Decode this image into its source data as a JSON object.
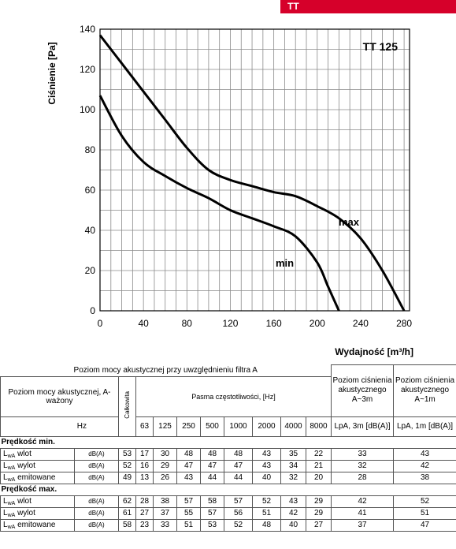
{
  "header": {
    "tag": "TT"
  },
  "chart_data": {
    "type": "line",
    "title": "TT 125",
    "xlabel": "Wydajność [m³/h]",
    "ylabel": "Ciśnienie [Pa]",
    "xlim": [
      0,
      285
    ],
    "ylim": [
      0,
      140
    ],
    "xticks": [
      0,
      40,
      80,
      120,
      160,
      200,
      240,
      280
    ],
    "yticks": [
      0,
      20,
      40,
      60,
      80,
      100,
      120,
      140
    ],
    "grid": true,
    "series": [
      {
        "name": "max",
        "x": [
          0,
          20,
          40,
          60,
          80,
          100,
          120,
          140,
          160,
          180,
          200,
          220,
          240,
          260,
          280
        ],
        "y": [
          137,
          123,
          109,
          95,
          81,
          70,
          65,
          62,
          59,
          57,
          52,
          46,
          36,
          20,
          0
        ]
      },
      {
        "name": "min",
        "x": [
          0,
          20,
          40,
          60,
          80,
          100,
          120,
          140,
          160,
          180,
          200,
          210,
          220
        ],
        "y": [
          107,
          87,
          74,
          67,
          61,
          56,
          50,
          46,
          42,
          37,
          24,
          12,
          0
        ]
      }
    ]
  },
  "table": {
    "caption": "Poziom mocy akustycznej przy uwzględnieniu filtra A",
    "rowhead": "Poziom mocy akustycznej, A-ważony",
    "unit_hz": "Hz",
    "total": "Całkowita",
    "bands_label": "Pasma częstotliwości, [Hz]",
    "bands": [
      "63",
      "125",
      "250",
      "500",
      "1000",
      "2000",
      "4000",
      "8000"
    ],
    "lpa3_head": "Poziom ciśnienia akustycznego A~3m",
    "lpa1_head": "Poziom ciśnienia akustycznego A~1m",
    "lpa3_unit": "LpA, 3m [dB(A)]",
    "lpa1_unit": "LpA, 1m [dB(A)]",
    "sections": [
      {
        "title": "Prędkość min.",
        "rows": [
          {
            "label": "wlot",
            "unit": "dB(A)",
            "total": "53",
            "bands": [
              "17",
              "30",
              "48",
              "48",
              "48",
              "43",
              "35",
              "22"
            ],
            "lpa3": "33",
            "lpa1": "43"
          },
          {
            "label": "wylot",
            "unit": "dB(A)",
            "total": "52",
            "bands": [
              "16",
              "29",
              "47",
              "47",
              "47",
              "43",
              "34",
              "21"
            ],
            "lpa3": "32",
            "lpa1": "42"
          },
          {
            "label": "emitowane",
            "unit": "dB(A)",
            "total": "49",
            "bands": [
              "13",
              "26",
              "43",
              "44",
              "44",
              "40",
              "32",
              "20"
            ],
            "lpa3": "28",
            "lpa1": "38"
          }
        ]
      },
      {
        "title": "Prędkość max.",
        "rows": [
          {
            "label": "wlot",
            "unit": "dB(A)",
            "total": "62",
            "bands": [
              "28",
              "38",
              "57",
              "58",
              "57",
              "52",
              "43",
              "29"
            ],
            "lpa3": "42",
            "lpa1": "52"
          },
          {
            "label": "wylot",
            "unit": "dB(A)",
            "total": "61",
            "bands": [
              "27",
              "37",
              "55",
              "57",
              "56",
              "51",
              "42",
              "29"
            ],
            "lpa3": "41",
            "lpa1": "51"
          },
          {
            "label": "emitowane",
            "unit": "dB(A)",
            "total": "58",
            "bands": [
              "23",
              "33",
              "51",
              "53",
              "52",
              "48",
              "40",
              "27"
            ],
            "lpa3": "37",
            "lpa1": "47"
          }
        ]
      }
    ]
  }
}
